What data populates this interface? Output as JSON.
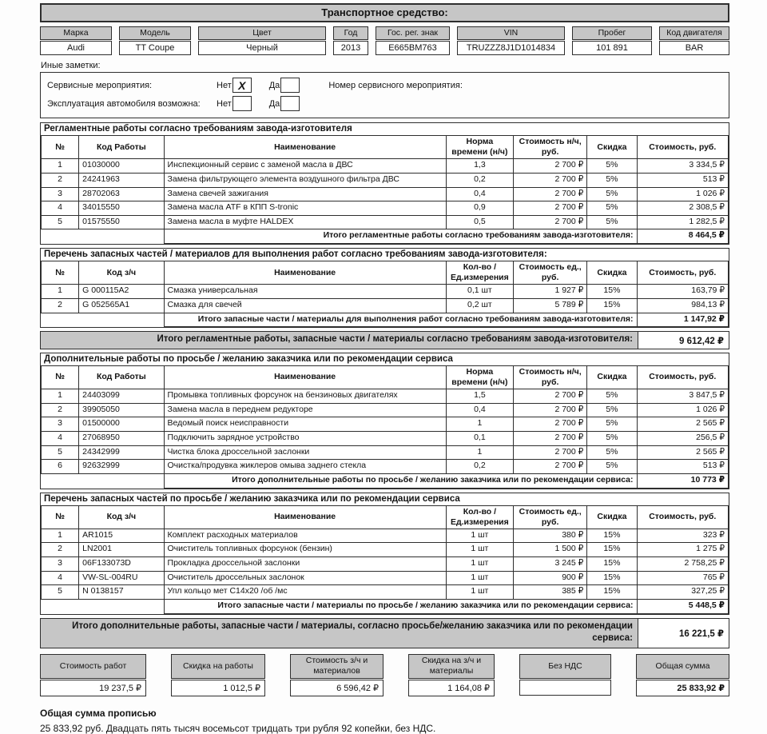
{
  "title": "Транспортное средство:",
  "vehicle": {
    "fields": [
      {
        "label": "Марка",
        "value": "Audi"
      },
      {
        "label": "Модель",
        "value": "TT Coupe"
      },
      {
        "label": "Цвет",
        "value": "Черный"
      },
      {
        "label": "Год",
        "value": "2013"
      },
      {
        "label": "Гос. рег. знак",
        "value": "E665BM763"
      },
      {
        "label": "VIN",
        "value": "TRUZZZ8J1D1014834"
      },
      {
        "label": "Пробег",
        "value": "101 891"
      },
      {
        "label": "Код двигателя",
        "value": "BAR"
      }
    ]
  },
  "notes": {
    "other": "Иные заметки:",
    "rows": [
      {
        "label": "Сервисные мероприятия:",
        "no": "Нет",
        "no_mark": "X",
        "yes": "Да",
        "yes_mark": "",
        "extra": "Номер сервисного мероприятия:"
      },
      {
        "label": "Эксплуатация автомобиля возможна:",
        "no": "Нет",
        "no_mark": "",
        "yes": "Да",
        "yes_mark": "",
        "extra": ""
      }
    ]
  },
  "reg_works": {
    "section_title": "Регламентные работы согласно требованиям завода-изготовителя",
    "headers": [
      "№",
      "Код Работы",
      "Наименование",
      "Норма времени (н/ч)",
      "Стоимость н/ч, руб.",
      "Скидка",
      "Стоимость, руб."
    ],
    "rows": [
      [
        "1",
        "01030000",
        "Инспекционный сервис с заменой масла в ДВС",
        "1,3",
        "2 700 ₽",
        "5%",
        "3 334,5 ₽"
      ],
      [
        "2",
        "24241963",
        "Замена фильтрующего элемента воздушного фильтра ДВС",
        "0,2",
        "2 700 ₽",
        "5%",
        "513 ₽"
      ],
      [
        "3",
        "28702063",
        "Замена свечей зажигания",
        "0,4",
        "2 700 ₽",
        "5%",
        "1 026 ₽"
      ],
      [
        "4",
        "34015550",
        "Замена масла ATF в КПП S-tronic",
        "0,9",
        "2 700 ₽",
        "5%",
        "2 308,5 ₽"
      ],
      [
        "5",
        "01575550",
        "Замена масла в муфте HALDEX",
        "0,5",
        "2 700 ₽",
        "5%",
        "1 282,5 ₽"
      ]
    ],
    "total_label": "Итого регламентные работы согласно требованиям завода-изготовителя:",
    "total_value": "8 464,5 ₽"
  },
  "reg_parts": {
    "section_title": "Перечень запасных частей / материалов для выполнения работ согласно требованиям завода-изготовителя:",
    "headers": [
      "№",
      "Код з/ч",
      "Наименование",
      "Кол-во / Ед.измерения",
      "Стоимость ед., руб.",
      "Скидка",
      "Стоимость, руб."
    ],
    "rows": [
      [
        "1",
        "G 000115A2",
        "Смазка универсальная",
        "0,1 шт",
        "1 927 ₽",
        "15%",
        "163,79 ₽"
      ],
      [
        "2",
        "G 052565A1",
        "Смазка для свечей",
        "0,2 шт",
        "5 789 ₽",
        "15%",
        "984,13 ₽"
      ]
    ],
    "total_label": "Итого запасные части / материалы для выполнения работ согласно требованиям завода-изготовителя:",
    "total_value": "1 147,92 ₽"
  },
  "reg_total_band": {
    "label": "Итого регламентные работы, запасные части / материалы согласно требованиям завода-изготовителя:",
    "value": "9 612,42 ₽"
  },
  "add_works": {
    "section_title": "Дополнительные работы по просьбе / желанию заказчика или по рекомендации сервиса",
    "headers": [
      "№",
      "Код Работы",
      "Наименование",
      "Норма времени (н/ч)",
      "Стоимость н/ч, руб.",
      "Скидка",
      "Стоимость, руб."
    ],
    "rows": [
      [
        "1",
        "24403099",
        "Промывка топливных форсунок на бензиновых двигателях",
        "1,5",
        "2 700 ₽",
        "5%",
        "3 847,5 ₽"
      ],
      [
        "2",
        "39905050",
        "Замена масла в переднем редукторе",
        "0,4",
        "2 700 ₽",
        "5%",
        "1 026 ₽"
      ],
      [
        "3",
        "01500000",
        "Ведомый поиск неисправности",
        "1",
        "2 700 ₽",
        "5%",
        "2 565 ₽"
      ],
      [
        "4",
        "27068950",
        "Подключить зарядное устройство",
        "0,1",
        "2 700 ₽",
        "5%",
        "256,5 ₽"
      ],
      [
        "5",
        "24342999",
        "Чистка блока дроссельной заслонки",
        "1",
        "2 700 ₽",
        "5%",
        "2 565 ₽"
      ],
      [
        "6",
        "92632999",
        "Очистка/продувка жиклеров омыва заднего стекла",
        "0,2",
        "2 700 ₽",
        "5%",
        "513 ₽"
      ]
    ],
    "total_label": "Итого дополнительные работы по просьбе / желанию заказчика или по рекомендации сервиса:",
    "total_value": "10 773 ₽"
  },
  "add_parts": {
    "section_title": "Перечень запасных частей по просьбе / желанию заказчика или по рекомендации сервиса",
    "headers": [
      "№",
      "Код з/ч",
      "Наименование",
      "Кол-во / Ед.измерения",
      "Стоимость ед., руб.",
      "Скидка",
      "Стоимость, руб."
    ],
    "rows": [
      [
        "1",
        "AR1015",
        "Комплект расходных материалов",
        "1 шт",
        "380 ₽",
        "15%",
        "323 ₽"
      ],
      [
        "2",
        "LN2001",
        "Очиститель топливных форсунок (бензин)",
        "1 шт",
        "1 500 ₽",
        "15%",
        "1 275 ₽"
      ],
      [
        "3",
        "06F133073D",
        "Прокладка дроссельной заслонки",
        "1 шт",
        "3 245 ₽",
        "15%",
        "2 758,25 ₽"
      ],
      [
        "4",
        "VW-SL-004RU",
        "Очиститель дроссельных заслонок",
        "1 шт",
        "900 ₽",
        "15%",
        "765 ₽"
      ],
      [
        "5",
        "N 0138157",
        "Упл кольцо мет C14x20 /об /мс",
        "1 шт",
        "385 ₽",
        "15%",
        "327,25 ₽"
      ]
    ],
    "total_label": "Итого запасные части / материалы по просьбе / желанию заказчика или по рекомендации сервиса:",
    "total_value": "5 448,5 ₽"
  },
  "add_total_band": {
    "label": "Итого дополнительные работы, запасные части / материалы, согласно просьбе/желанию заказчика или по рекомендации сервиса:",
    "value": "16 221,5 ₽"
  },
  "summary": {
    "boxes": [
      {
        "label": "Стоимость работ",
        "value": "19 237,5 ₽"
      },
      {
        "label": "Скидка на работы",
        "value": "1 012,5 ₽"
      },
      {
        "label": "Стоимость з/ч и материалов",
        "value": "6 596,42 ₽"
      },
      {
        "label": "Скидка на з/ч и материалы",
        "value": "1 164,08 ₽"
      },
      {
        "label": "Без НДС",
        "value": ""
      },
      {
        "label": "Общая сумма",
        "value": "25 833,92 ₽"
      }
    ]
  },
  "footer": {
    "label": "Общая сумма прописью",
    "text": "25 833,92 руб. Двадцать пять тысяч восемьсот тридцать три рубля 92 копейки, без НДС."
  }
}
